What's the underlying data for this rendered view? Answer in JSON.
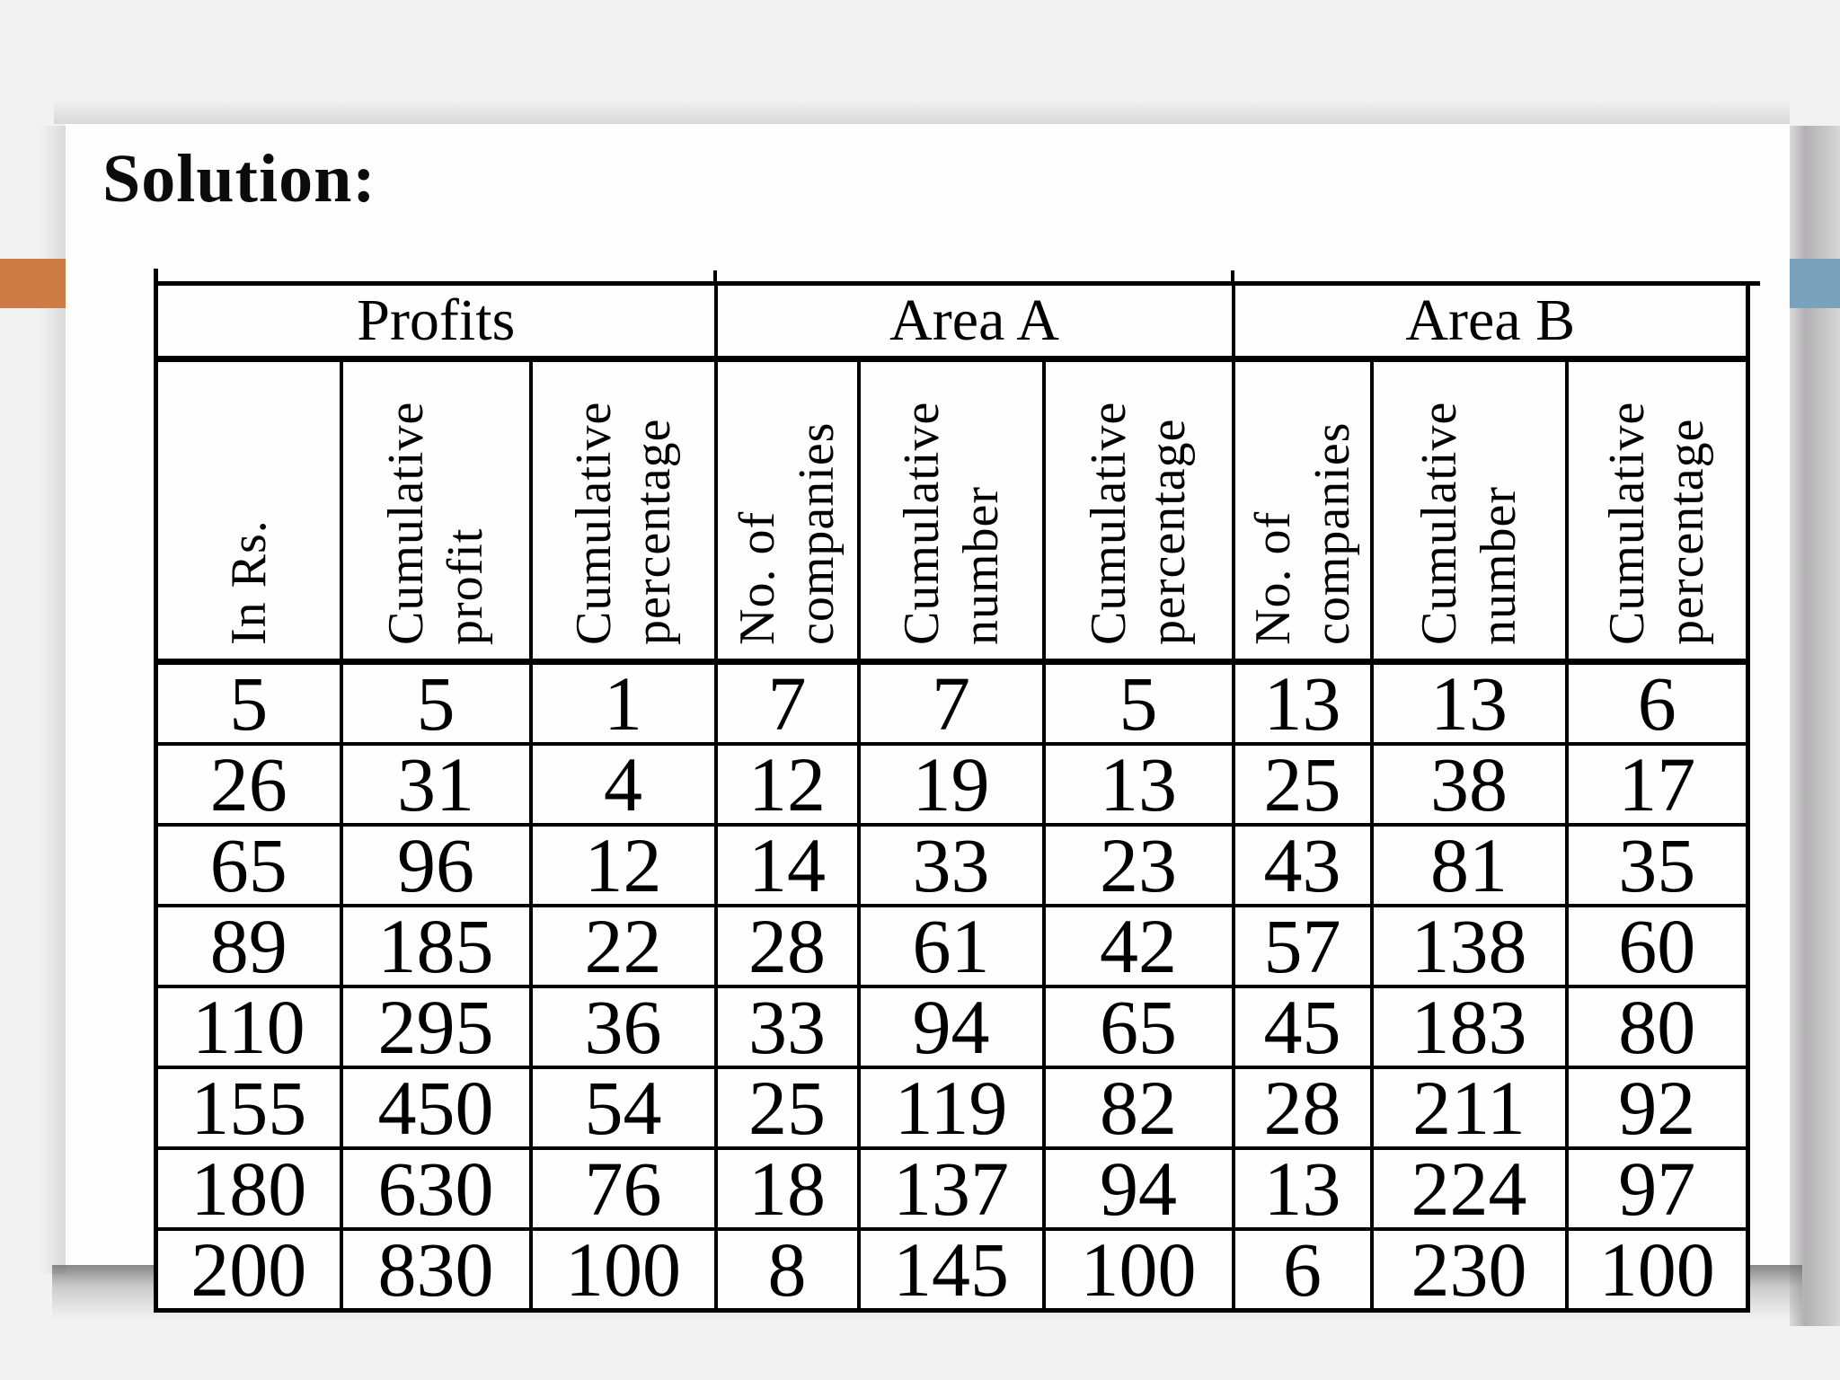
{
  "page": {
    "title_label": "Solution:"
  },
  "accents": {
    "left_bar_color": "#cf7b45",
    "right_bar_color": "#7aa2bd"
  },
  "table": {
    "groups": [
      {
        "label": "Profits"
      },
      {
        "label": "Area A"
      },
      {
        "label": "Area B"
      }
    ],
    "columns": [
      {
        "header": "In Rs."
      },
      {
        "header": "Cumulative\nprofit"
      },
      {
        "header": "Cumulative\npercentage"
      },
      {
        "header": "No. of\ncompanies"
      },
      {
        "header": "Cumulative\nnumber"
      },
      {
        "header": "Cumulative\npercentage"
      },
      {
        "header": "No. of\ncompanies"
      },
      {
        "header": "Cumulative\nnumber"
      },
      {
        "header": "Cumulative\npercentage"
      }
    ],
    "rows": [
      [
        5,
        5,
        1,
        7,
        7,
        5,
        13,
        13,
        6
      ],
      [
        26,
        31,
        4,
        12,
        19,
        13,
        25,
        38,
        17
      ],
      [
        65,
        96,
        12,
        14,
        33,
        23,
        43,
        81,
        35
      ],
      [
        89,
        185,
        22,
        28,
        61,
        42,
        57,
        138,
        60
      ],
      [
        110,
        295,
        36,
        33,
        94,
        65,
        45,
        183,
        80
      ],
      [
        155,
        450,
        54,
        25,
        119,
        82,
        28,
        211,
        92
      ],
      [
        180,
        630,
        76,
        18,
        137,
        94,
        13,
        224,
        97
      ],
      [
        200,
        830,
        100,
        8,
        145,
        100,
        6,
        230,
        100
      ]
    ]
  }
}
